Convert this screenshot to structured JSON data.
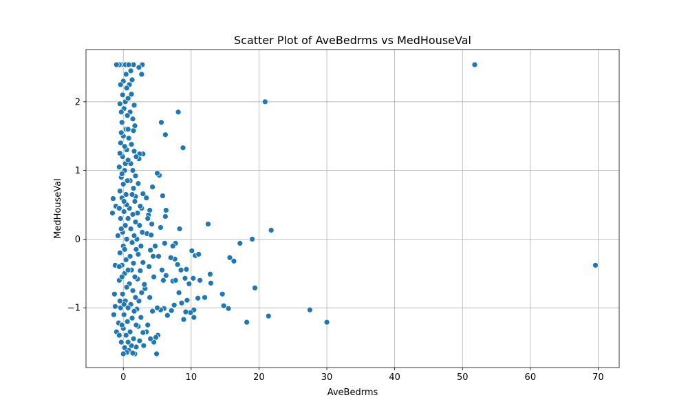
{
  "chart_data": {
    "type": "scatter",
    "title": "Scatter Plot of AveBedrms vs MedHouseVal",
    "xlabel": "AveBedrms",
    "ylabel": "MedHouseVal",
    "xlim": [
      -5.5,
      73.1
    ],
    "ylim": [
      -1.87,
      2.76
    ],
    "xticks": [
      0,
      10,
      20,
      30,
      40,
      50,
      60,
      70
    ],
    "yticks": [
      -1,
      0,
      1,
      2
    ],
    "ytick_labels": [
      "−1",
      "0",
      "1",
      "2"
    ],
    "xtick_labels": [
      "0",
      "10",
      "20",
      "30",
      "40",
      "50",
      "60",
      "70"
    ],
    "grid": true,
    "point_color": "#1f77b4",
    "points": [
      [
        51.8,
        2.54
      ],
      [
        69.6,
        -0.38
      ],
      [
        20.9,
        2.0
      ],
      [
        8.1,
        1.85
      ],
      [
        5.6,
        1.7
      ],
      [
        6.2,
        1.52
      ],
      [
        8.8,
        1.33
      ],
      [
        21.8,
        0.13
      ],
      [
        12.5,
        0.22
      ],
      [
        19.0,
        0.0
      ],
      [
        17.2,
        -0.06
      ],
      [
        15.7,
        -0.27
      ],
      [
        16.3,
        -0.32
      ],
      [
        19.4,
        -0.71
      ],
      [
        14.8,
        -0.97
      ],
      [
        15.5,
        -1.01
      ],
      [
        14.6,
        -0.8
      ],
      [
        18.2,
        -1.21
      ],
      [
        21.4,
        -1.12
      ],
      [
        27.5,
        -1.03
      ],
      [
        30.0,
        -1.21
      ],
      [
        12.8,
        -0.51
      ],
      [
        12.9,
        -0.64
      ],
      [
        11.3,
        -0.6
      ],
      [
        12.0,
        -0.85
      ],
      [
        11.0,
        -0.86
      ],
      [
        10.3,
        -0.57
      ],
      [
        10.6,
        -0.24
      ],
      [
        11.1,
        -0.22
      ],
      [
        10.1,
        -0.17
      ],
      [
        10.4,
        -1.03
      ],
      [
        10.4,
        -1.14
      ],
      [
        9.9,
        -1.07
      ],
      [
        9.2,
        -1.06
      ],
      [
        9.4,
        -0.89
      ],
      [
        8.9,
        -1.17
      ],
      [
        8.6,
        -0.93
      ],
      [
        8.0,
        -0.37
      ],
      [
        8.5,
        -0.45
      ],
      [
        9.1,
        -0.57
      ],
      [
        9.3,
        -0.44
      ],
      [
        9.7,
        -0.65
      ],
      [
        8.3,
        0.15
      ],
      [
        7.7,
        -0.06
      ],
      [
        7.3,
        -0.1
      ],
      [
        7.6,
        -0.29
      ],
      [
        7.0,
        -0.27
      ],
      [
        7.3,
        -0.61
      ],
      [
        7.7,
        -0.6
      ],
      [
        8.2,
        -0.78
      ],
      [
        7.5,
        -0.96
      ],
      [
        7.1,
        -1.04
      ],
      [
        6.5,
        -1.11
      ],
      [
        6.0,
        -1.01
      ],
      [
        5.5,
        -1.03
      ],
      [
        5.0,
        -1.0
      ],
      [
        5.1,
        -1.4
      ],
      [
        4.8,
        -1.43
      ],
      [
        4.9,
        -1.67
      ],
      [
        4.5,
        -1.5
      ],
      [
        6.2,
        0.33
      ],
      [
        6.3,
        0.42
      ],
      [
        5.8,
        0.63
      ],
      [
        5.5,
        0.17
      ],
      [
        6.1,
        -0.06
      ],
      [
        5.7,
        -0.45
      ],
      [
        5.9,
        -0.6
      ],
      [
        6.3,
        -0.53
      ],
      [
        5.2,
        -0.25
      ],
      [
        5.3,
        0.93
      ],
      [
        5.0,
        0.96
      ],
      [
        4.3,
        0.76
      ],
      [
        3.9,
        0.42
      ],
      [
        3.7,
        0.35
      ],
      [
        3.6,
        0.3
      ],
      [
        4.2,
        0.22
      ],
      [
        3.5,
        0.08
      ],
      [
        4.1,
        0.06
      ],
      [
        4.7,
        -0.1
      ],
      [
        4.4,
        -0.25
      ],
      [
        4.0,
        -0.16
      ],
      [
        3.8,
        -0.4
      ],
      [
        4.5,
        -0.55
      ],
      [
        3.2,
        -0.72
      ],
      [
        3.9,
        -0.85
      ],
      [
        4.3,
        -1.05
      ],
      [
        3.6,
        -1.25
      ],
      [
        3.4,
        -1.35
      ],
      [
        4.0,
        -1.45
      ],
      [
        3.0,
        -1.55
      ],
      [
        2.8,
        2.54
      ],
      [
        2.3,
        2.5
      ],
      [
        2.7,
        2.4
      ],
      [
        2.9,
        1.24
      ],
      [
        2.4,
        1.24
      ],
      [
        2.3,
        1.17
      ],
      [
        2.7,
        0.45
      ],
      [
        3.4,
        0.6
      ],
      [
        2.2,
        0.81
      ],
      [
        2.9,
        0.66
      ],
      [
        1.8,
        0.62
      ],
      [
        2.5,
        0.48
      ],
      [
        2.1,
        0.38
      ],
      [
        2.4,
        0.2
      ],
      [
        2.8,
        0.1
      ],
      [
        2.0,
        0.0
      ],
      [
        2.6,
        -0.1
      ],
      [
        2.2,
        -0.22
      ],
      [
        2.9,
        -0.34
      ],
      [
        2.5,
        -0.46
      ],
      [
        2.1,
        -0.58
      ],
      [
        3.1,
        -0.66
      ],
      [
        2.7,
        -0.78
      ],
      [
        2.3,
        -0.9
      ],
      [
        2.0,
        -1.02
      ],
      [
        2.6,
        -1.14
      ],
      [
        2.2,
        -1.27
      ],
      [
        2.9,
        -1.36
      ],
      [
        2.4,
        -1.48
      ],
      [
        1.9,
        -1.57
      ],
      [
        1.7,
        -1.67
      ],
      [
        1.5,
        2.54
      ],
      [
        1.1,
        2.45
      ],
      [
        1.3,
        2.32
      ],
      [
        0.9,
        2.25
      ],
      [
        1.2,
        2.11
      ],
      [
        1.6,
        1.95
      ],
      [
        1.0,
        1.85
      ],
      [
        1.4,
        1.75
      ],
      [
        1.7,
        1.65
      ],
      [
        1.5,
        1.58
      ],
      [
        0.8,
        1.47
      ],
      [
        1.2,
        1.38
      ],
      [
        1.6,
        1.28
      ],
      [
        1.9,
        1.2
      ],
      [
        1.1,
        1.1
      ],
      [
        1.4,
        1.0
      ],
      [
        1.8,
        0.92
      ],
      [
        1.0,
        0.85
      ],
      [
        1.5,
        0.74
      ],
      [
        1.3,
        0.65
      ],
      [
        1.7,
        0.55
      ],
      [
        0.9,
        0.45
      ],
      [
        1.4,
        0.36
      ],
      [
        1.8,
        0.25
      ],
      [
        1.1,
        0.15
      ],
      [
        1.6,
        0.05
      ],
      [
        1.3,
        -0.05
      ],
      [
        1.9,
        -0.15
      ],
      [
        1.0,
        -0.25
      ],
      [
        1.5,
        -0.35
      ],
      [
        1.2,
        -0.45
      ],
      [
        1.7,
        -0.55
      ],
      [
        0.9,
        -0.65
      ],
      [
        1.4,
        -0.75
      ],
      [
        1.8,
        -0.85
      ],
      [
        1.1,
        -0.95
      ],
      [
        1.6,
        -1.05
      ],
      [
        1.3,
        -1.15
      ],
      [
        1.9,
        -1.25
      ],
      [
        1.0,
        -1.35
      ],
      [
        1.5,
        -1.45
      ],
      [
        1.2,
        -1.55
      ],
      [
        0.8,
        -1.62
      ],
      [
        1.4,
        -1.66
      ],
      [
        0.6,
        2.54
      ],
      [
        0.2,
        2.54
      ],
      [
        -0.2,
        2.54
      ],
      [
        -0.6,
        2.54
      ],
      [
        -1.0,
        2.54
      ],
      [
        0.4,
        2.4
      ],
      [
        0.0,
        2.3
      ],
      [
        0.5,
        2.2
      ],
      [
        -0.1,
        2.1
      ],
      [
        0.3,
        2.0
      ],
      [
        -0.5,
        1.97
      ],
      [
        0.1,
        1.9
      ],
      [
        0.6,
        1.8
      ],
      [
        -0.2,
        1.7
      ],
      [
        0.4,
        1.6
      ],
      [
        0.0,
        1.5
      ],
      [
        -0.4,
        1.4
      ],
      [
        0.5,
        1.3
      ],
      [
        -0.1,
        1.2
      ],
      [
        0.3,
        1.1
      ],
      [
        -0.6,
        1.05
      ],
      [
        0.2,
        1.0
      ],
      [
        -0.3,
        0.9
      ],
      [
        0.6,
        0.85
      ],
      [
        0.0,
        0.8
      ],
      [
        -0.5,
        0.7
      ],
      [
        0.4,
        0.65
      ],
      [
        -0.2,
        0.6
      ],
      [
        0.5,
        0.5
      ],
      [
        -1.5,
        0.59
      ],
      [
        -1.1,
        0.48
      ],
      [
        -1.6,
        0.38
      ],
      [
        0.1,
        0.4
      ],
      [
        -0.4,
        0.3
      ],
      [
        0.3,
        0.2
      ],
      [
        -0.1,
        0.1
      ],
      [
        -0.8,
        0.05
      ],
      [
        0.5,
        0.0
      ],
      [
        0.0,
        -0.1
      ],
      [
        -0.5,
        -0.2
      ],
      [
        0.4,
        -0.3
      ],
      [
        -0.2,
        -0.38
      ],
      [
        -1.2,
        -0.38
      ],
      [
        0.2,
        -0.5
      ],
      [
        -0.6,
        -0.6
      ],
      [
        0.5,
        -0.7
      ],
      [
        -0.1,
        -0.8
      ],
      [
        -1.3,
        -0.8
      ],
      [
        0.3,
        -0.9
      ],
      [
        -0.4,
        -1.0
      ],
      [
        -1.2,
        -0.98
      ],
      [
        0.1,
        -1.1
      ],
      [
        -1.4,
        -1.1
      ],
      [
        0.6,
        -1.2
      ],
      [
        -0.7,
        -1.22
      ],
      [
        0.0,
        -1.3
      ],
      [
        -1.0,
        -1.35
      ],
      [
        0.4,
        -1.4
      ],
      [
        -0.3,
        -1.5
      ],
      [
        0.2,
        -1.58
      ],
      [
        0.5,
        -1.65
      ],
      [
        0.0,
        -1.67
      ],
      [
        -0.3,
        1.55
      ],
      [
        0.2,
        1.35
      ],
      [
        -0.2,
        0.95
      ],
      [
        0.1,
        0.55
      ],
      [
        -0.3,
        0.15
      ],
      [
        0.2,
        -0.15
      ],
      [
        -0.2,
        -0.55
      ],
      [
        0.1,
        -0.95
      ],
      [
        -0.2,
        -1.25
      ],
      [
        0.3,
        2.54
      ],
      [
        0.8,
        2.54
      ],
      [
        -0.4,
        2.25
      ],
      [
        0.7,
        2.05
      ],
      [
        -0.3,
        1.85
      ],
      [
        0.7,
        1.6
      ],
      [
        -0.5,
        1.25
      ],
      [
        0.7,
        1.15
      ],
      [
        -0.6,
        0.45
      ],
      [
        0.7,
        0.3
      ],
      [
        -0.6,
        -0.4
      ],
      [
        0.7,
        -0.45
      ],
      [
        -0.5,
        -0.9
      ],
      [
        0.7,
        -1.0
      ],
      [
        -0.6,
        -1.4
      ],
      [
        0.7,
        -1.5
      ]
    ]
  }
}
